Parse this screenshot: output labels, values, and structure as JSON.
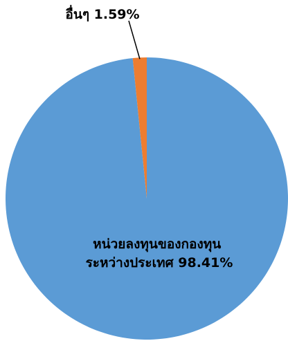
{
  "chart_data": {
    "type": "pie",
    "slices": [
      {
        "label_lines": [
          "หน่วยลงทุนของกองทุน",
          "ระหว่างประเทศ 98.41%"
        ],
        "value": 98.41,
        "color": "#5B9BD5"
      },
      {
        "label_lines": [
          "อื่นๆ 1.59%"
        ],
        "value": 1.59,
        "color": "#ED7D31"
      }
    ]
  }
}
